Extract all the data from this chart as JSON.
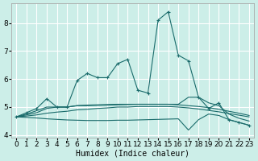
{
  "xlabel": "Humidex (Indice chaleur)",
  "bg_color": "#cceee8",
  "grid_color": "#ffffff",
  "line_color": "#1a6b6b",
  "xlim": [
    -0.5,
    23.5
  ],
  "ylim": [
    3.9,
    8.7
  ],
  "yticks": [
    4,
    5,
    6,
    7,
    8
  ],
  "xticks": [
    0,
    1,
    2,
    3,
    4,
    5,
    6,
    7,
    8,
    9,
    10,
    11,
    12,
    13,
    14,
    15,
    16,
    17,
    18,
    19,
    20,
    21,
    22,
    23
  ],
  "curve1_x": [
    0,
    1,
    2,
    3,
    4,
    5,
    6,
    7,
    8,
    9,
    10,
    11,
    12,
    13,
    14,
    15,
    16,
    17,
    18,
    19,
    20,
    21,
    22,
    23
  ],
  "curve1_y": [
    4.65,
    4.8,
    4.95,
    5.3,
    5.0,
    5.0,
    5.95,
    6.2,
    6.05,
    6.05,
    6.55,
    6.7,
    5.6,
    5.5,
    8.1,
    8.4,
    6.85,
    6.65,
    5.35,
    4.95,
    5.15,
    4.55,
    4.45,
    4.35
  ],
  "curve2_x": [
    0,
    1,
    2,
    3,
    4,
    5,
    6,
    7,
    8,
    9,
    10,
    11,
    12,
    13,
    14,
    15,
    16,
    17,
    18,
    19,
    20,
    21,
    22,
    23
  ],
  "curve2_y": [
    4.65,
    4.72,
    4.8,
    4.95,
    5.0,
    5.0,
    5.05,
    5.07,
    5.08,
    5.09,
    5.1,
    5.1,
    5.1,
    5.1,
    5.1,
    5.1,
    5.08,
    5.05,
    5.02,
    4.98,
    4.92,
    4.85,
    4.78,
    4.7
  ],
  "curve3_x": [
    0,
    1,
    2,
    3,
    4,
    5,
    6,
    7,
    8,
    9,
    10,
    11,
    12,
    13,
    14,
    15,
    16,
    17,
    18,
    19,
    20,
    21,
    22,
    23
  ],
  "curve3_y": [
    4.65,
    4.68,
    4.72,
    4.78,
    4.82,
    4.85,
    4.9,
    4.92,
    4.95,
    4.97,
    5.0,
    5.0,
    5.02,
    5.02,
    5.02,
    5.02,
    5.0,
    4.97,
    4.93,
    4.88,
    4.83,
    4.77,
    4.71,
    4.65
  ],
  "curve4_x": [
    0,
    1,
    2,
    3,
    4,
    5,
    6,
    7,
    8,
    9,
    10,
    11,
    12,
    13,
    14,
    15,
    16,
    17,
    18,
    19,
    20,
    21,
    22,
    23
  ],
  "curve4_y": [
    4.65,
    4.63,
    4.61,
    4.58,
    4.56,
    4.54,
    4.53,
    4.52,
    4.52,
    4.52,
    4.53,
    4.53,
    4.54,
    4.55,
    4.56,
    4.57,
    4.58,
    4.18,
    4.55,
    4.75,
    4.7,
    4.55,
    4.45,
    4.35
  ],
  "curve5_x": [
    0,
    1,
    2,
    3,
    4,
    5,
    6,
    7,
    8,
    9,
    10,
    11,
    12,
    13,
    14,
    15,
    16,
    17,
    18,
    19,
    20,
    21,
    22,
    23
  ],
  "curve5_y": [
    4.65,
    4.75,
    4.87,
    5.0,
    5.0,
    5.0,
    5.05,
    5.05,
    5.06,
    5.07,
    5.08,
    5.09,
    5.1,
    5.1,
    5.1,
    5.1,
    5.1,
    5.35,
    5.35,
    5.15,
    5.05,
    4.75,
    4.6,
    4.5
  ]
}
